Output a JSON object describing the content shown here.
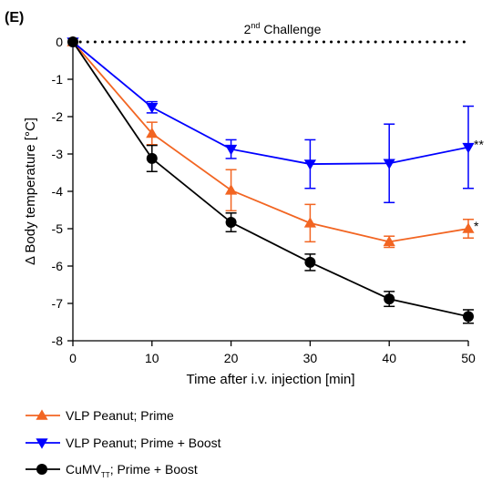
{
  "chart_data": {
    "type": "line",
    "panel_label": "(E)",
    "annotation": {
      "base": "2",
      "superscript": "nd",
      "rest": " Challenge"
    },
    "xlabel": "Time after i.v. injection [min]",
    "ylabel": "Δ Body temperature [°C]",
    "xlim": [
      0,
      50
    ],
    "ylim": [
      -8,
      0
    ],
    "xticks": [
      0,
      10,
      20,
      30,
      40,
      50
    ],
    "yticks": [
      0,
      -1,
      -2,
      -3,
      -4,
      -5,
      -6,
      -7,
      -8
    ],
    "grid": false,
    "baseline_y": 0,
    "legend_position": "bottom-left",
    "series": [
      {
        "name": "VLP Peanut; Prime",
        "color": "#f26522",
        "marker": "triangle-up",
        "x": [
          0,
          10,
          20,
          30,
          40,
          50
        ],
        "y": [
          0,
          -2.45,
          -3.97,
          -4.85,
          -5.35,
          -5.0
        ],
        "err": [
          0,
          0.3,
          0.55,
          0.5,
          0.15,
          0.25
        ],
        "significance": "*"
      },
      {
        "name": "VLP Peanut; Prime + Boost",
        "color": "#0000ff",
        "marker": "triangle-down",
        "x": [
          0,
          10,
          20,
          30,
          40,
          50
        ],
        "y": [
          0,
          -1.75,
          -2.87,
          -3.27,
          -3.25,
          -2.82
        ],
        "err": [
          0,
          0.15,
          0.25,
          0.65,
          1.05,
          1.1
        ],
        "significance": "**"
      },
      {
        "name": "CuMV; Prime + Boost",
        "label_main": "CuMV",
        "label_sub": "TT",
        "label_rest": "; Prime + Boost",
        "color": "#000000",
        "marker": "circle",
        "x": [
          0,
          10,
          20,
          30,
          40,
          50
        ],
        "y": [
          0,
          -3.12,
          -4.83,
          -5.9,
          -6.88,
          -7.35
        ],
        "err": [
          0,
          0.35,
          0.25,
          0.22,
          0.2,
          0.18
        ],
        "significance": ""
      }
    ]
  }
}
